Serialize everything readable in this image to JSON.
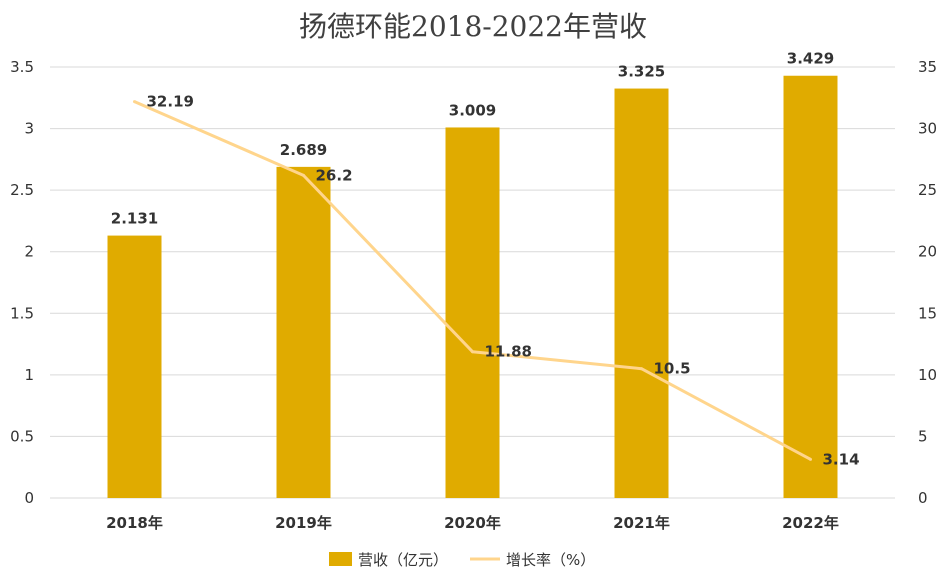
{
  "chart_data": {
    "type": "bar",
    "title": "扬德环能2018-2022年营收",
    "categories": [
      "2018年",
      "2019年",
      "2020年",
      "2021年",
      "2022年"
    ],
    "series": [
      {
        "name": "营收（亿元）",
        "type": "bar",
        "axis": "left",
        "values": [
          2.131,
          2.689,
          3.009,
          3.325,
          3.429
        ],
        "labels": [
          "2.131",
          "2.689",
          "3.009",
          "3.325",
          "3.429"
        ],
        "color": "#E0AB00"
      },
      {
        "name": "增长率（%）",
        "type": "line",
        "axis": "right",
        "values": [
          32.19,
          26.2,
          11.88,
          10.5,
          3.14
        ],
        "labels": [
          "32.19",
          "26.2",
          "11.88",
          "10.5",
          "3.14"
        ],
        "color": "#FFD58C"
      }
    ],
    "y_left": {
      "min": 0,
      "max": 3.5,
      "ticks": [
        "0",
        "0.5",
        "1",
        "1.5",
        "2",
        "2.5",
        "3",
        "3.5"
      ]
    },
    "y_right": {
      "min": 0,
      "max": 35,
      "ticks": [
        "0",
        "5",
        "10",
        "15",
        "20",
        "25",
        "30",
        "35"
      ]
    },
    "grid": true,
    "legend_position": "bottom"
  }
}
